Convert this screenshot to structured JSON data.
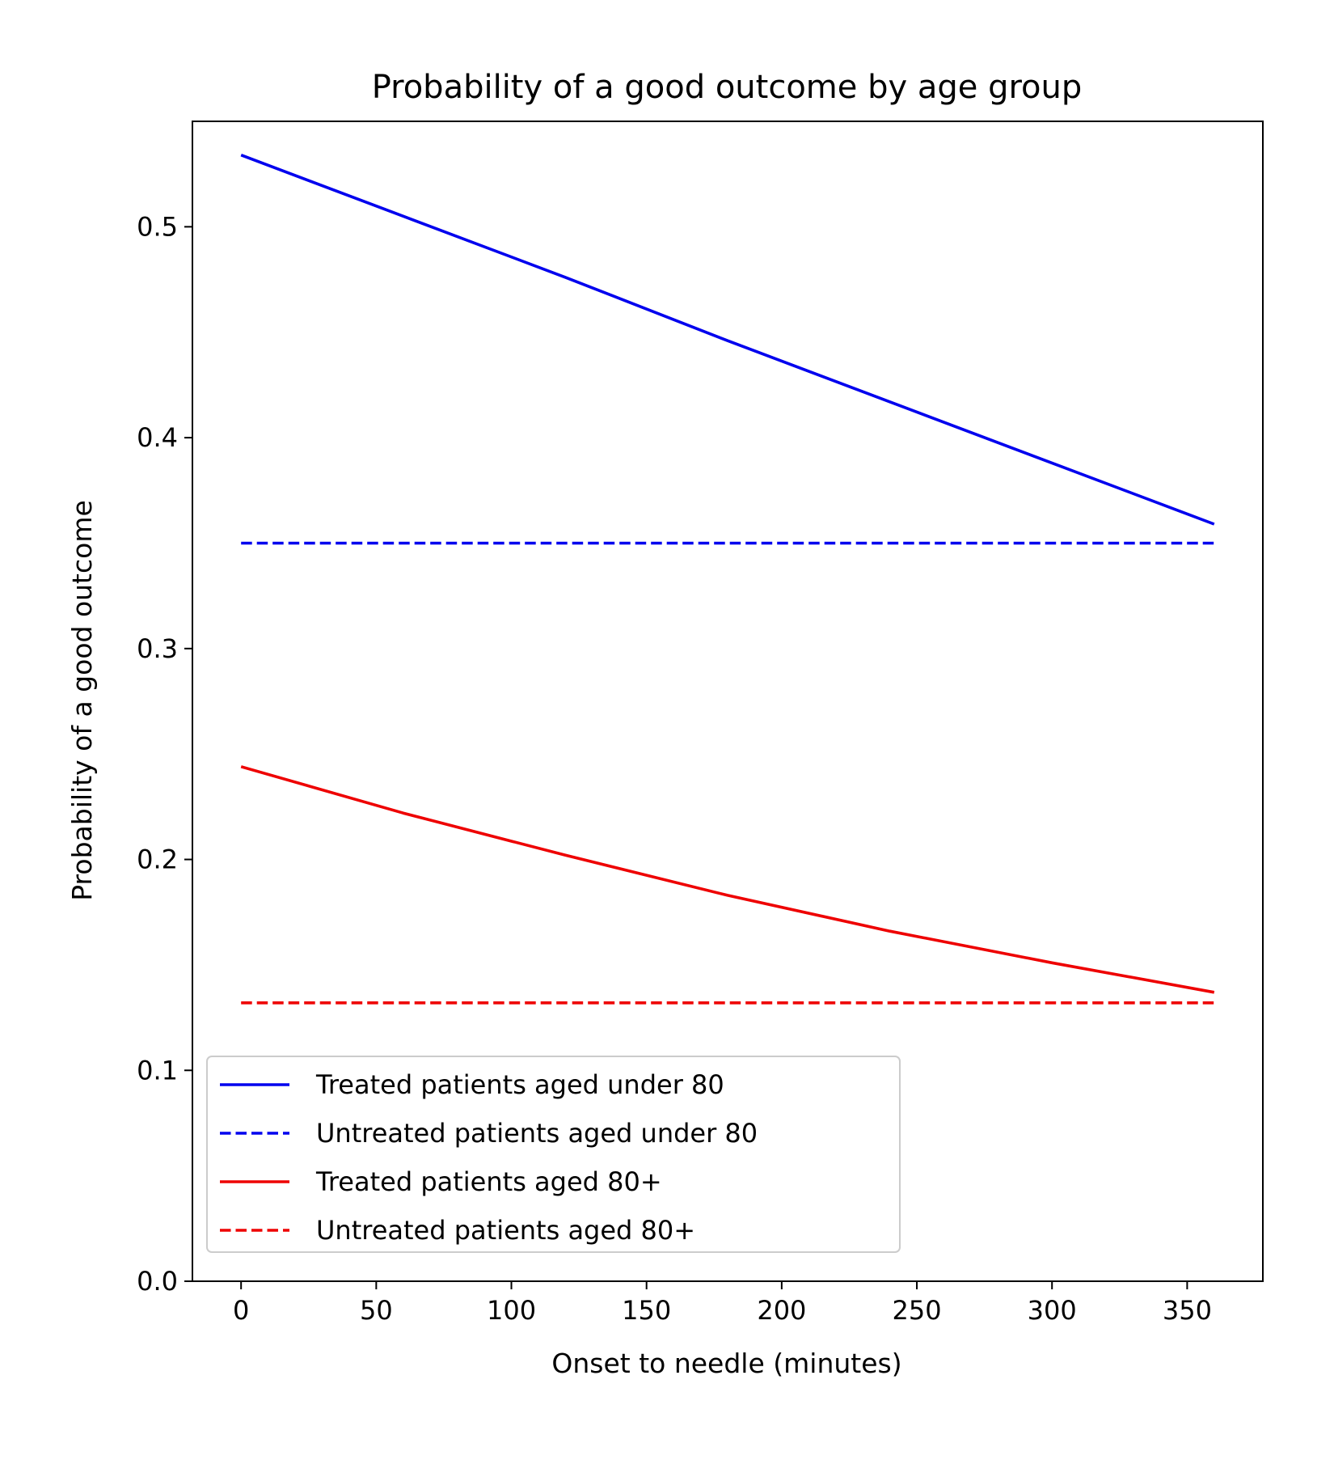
{
  "chart_data": {
    "type": "line",
    "title": "Probability of a good outcome by age group",
    "xlabel": "Onset to needle (minutes)",
    "ylabel": "Probability of a good outcome",
    "xlim": [
      -18,
      378
    ],
    "ylim": [
      0.0,
      0.55
    ],
    "x_ticks": [
      0,
      50,
      100,
      150,
      200,
      250,
      300,
      350
    ],
    "x_tick_labels": [
      "0",
      "50",
      "100",
      "150",
      "200",
      "250",
      "300",
      "350"
    ],
    "y_ticks": [
      0.0,
      0.1,
      0.2,
      0.3,
      0.4,
      0.5
    ],
    "y_tick_labels": [
      "0.0",
      "0.1",
      "0.2",
      "0.3",
      "0.4",
      "0.5"
    ],
    "grid": false,
    "legend_position": "lower-left",
    "series": [
      {
        "name": "Treated patients aged under 80",
        "color": "#0000ee",
        "line_style": "solid",
        "x": [
          0,
          60,
          120,
          180,
          240,
          300,
          360
        ],
        "y": [
          0.534,
          0.505,
          0.476,
          0.446,
          0.417,
          0.388,
          0.359
        ]
      },
      {
        "name": "Untreated patients aged under 80",
        "color": "#0000ee",
        "line_style": "dashed",
        "x": [
          0,
          360
        ],
        "y": [
          0.35,
          0.35
        ]
      },
      {
        "name": "Treated patients aged 80+",
        "color": "#ee0000",
        "line_style": "solid",
        "x": [
          0,
          60,
          120,
          180,
          240,
          300,
          360
        ],
        "y": [
          0.244,
          0.222,
          0.202,
          0.183,
          0.166,
          0.151,
          0.137
        ]
      },
      {
        "name": "Untreated patients aged 80+",
        "color": "#ee0000",
        "line_style": "dashed",
        "x": [
          0,
          360
        ],
        "y": [
          0.132,
          0.132
        ]
      }
    ]
  }
}
